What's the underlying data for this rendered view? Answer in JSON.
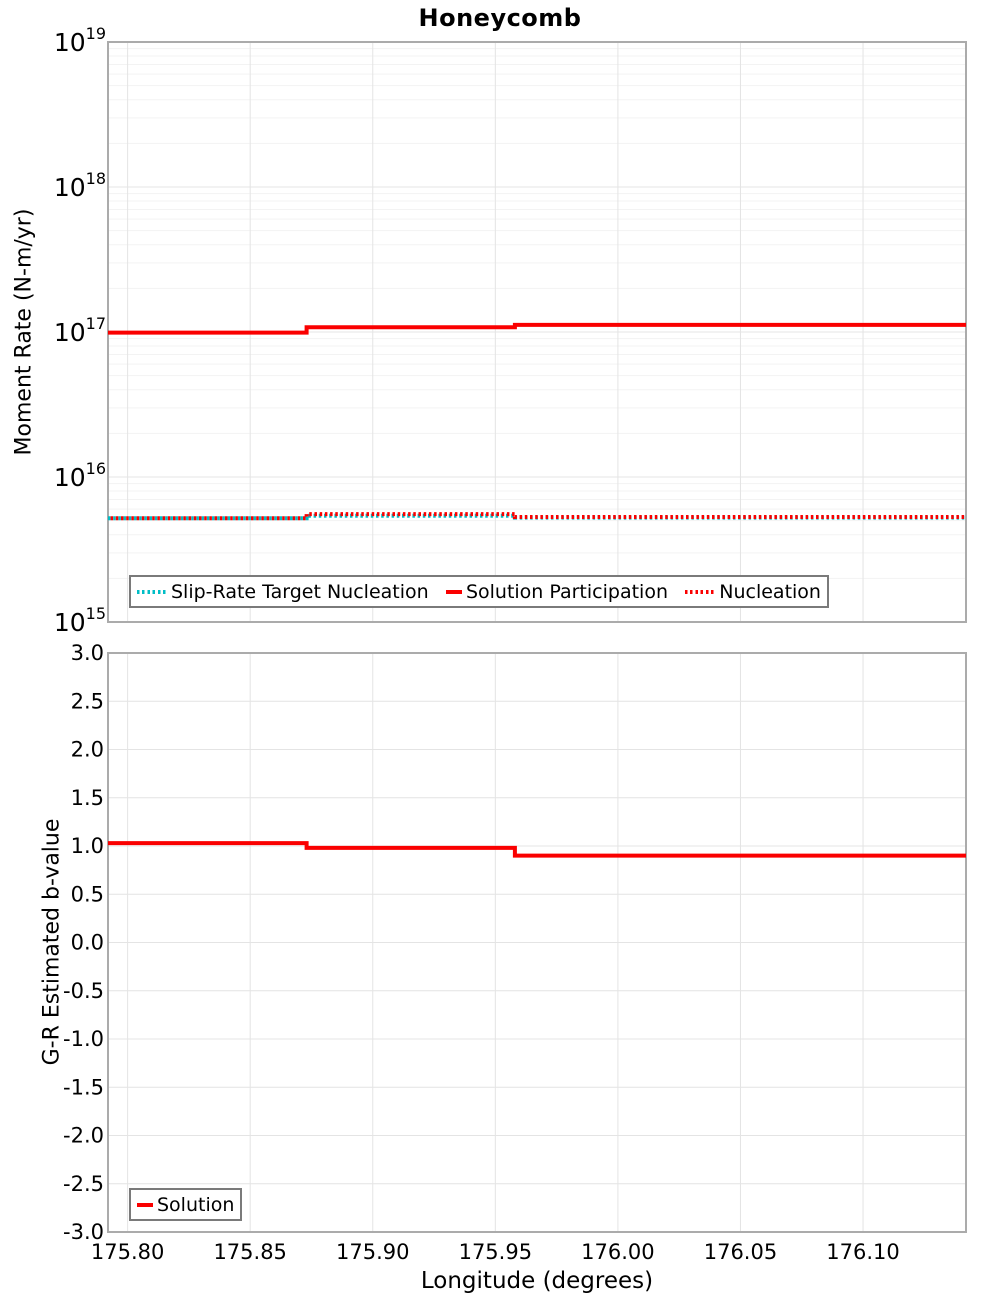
{
  "title": "Honeycomb",
  "colors": {
    "red": "#fa0000",
    "teal": "#00bdc6",
    "grid_major": "#e4e4e4",
    "grid_minor": "#f3f3f3",
    "border": "#ababab",
    "legend_border": "#7a7a7a",
    "text": "#000000"
  },
  "top_axis": {
    "ylabel": "Moment Rate (N-m/yr)"
  },
  "bottom_axis": {
    "ylabel": "G-R Estimated b-value",
    "xlabel": "Longitude (degrees)"
  },
  "chart_data": [
    {
      "type": "line",
      "title": "Honeycomb",
      "ylabel": "Moment Rate (N-m/yr)",
      "yscale": "log",
      "ylim_exp": [
        15,
        19
      ],
      "y_tick_labels": [
        "10^19",
        "10^18",
        "10^17",
        "10^16",
        "10^15"
      ],
      "xlim": [
        175.792,
        176.142
      ],
      "x_tick_values": [
        175.8,
        175.85,
        175.9,
        175.95,
        176.0,
        176.05,
        176.1
      ],
      "x_step_edges": [
        175.792,
        175.873,
        175.958,
        176.142
      ],
      "grid": "log-minor+major",
      "legend_position": "bottom-left",
      "series": [
        {
          "name": "Slip-Rate Target Nucleation",
          "line_style": "dotted",
          "color_key": "teal",
          "values": [
            5200000000000000.0,
            5400000000000000.0,
            5250000000000000.0
          ]
        },
        {
          "name": "Solution Participation",
          "line_style": "solid",
          "color_key": "red",
          "values": [
            9.9e+16,
            1.08e+17,
            1.12e+17
          ]
        },
        {
          "name": "Nucleation",
          "line_style": "dotted",
          "color_key": "red",
          "values": [
            5200000000000000.0,
            5550000000000000.0,
            5300000000000000.0
          ]
        }
      ]
    },
    {
      "type": "line",
      "ylabel": "G-R Estimated b-value",
      "xlabel": "Longitude (degrees)",
      "yscale": "linear",
      "ylim": [
        -3.0,
        3.0
      ],
      "y_tick_step": 0.5,
      "y_tick_labels": [
        "3.0",
        "2.5",
        "2.0",
        "1.5",
        "1.0",
        "0.5",
        "0.0",
        "-0.5",
        "-1.0",
        "-1.5",
        "-2.0",
        "-2.5",
        "-3.0"
      ],
      "xlim": [
        175.792,
        176.142
      ],
      "x_tick_values": [
        175.8,
        175.85,
        175.9,
        175.95,
        176.0,
        176.05,
        176.1
      ],
      "x_tick_labels": [
        "175.80",
        "175.85",
        "175.90",
        "175.95",
        "176.00",
        "176.05",
        "176.10"
      ],
      "x_step_edges": [
        175.792,
        175.873,
        175.958,
        176.142
      ],
      "grid": "major",
      "legend_position": "bottom-left",
      "series": [
        {
          "name": "Solution",
          "line_style": "solid",
          "color_key": "red",
          "values": [
            1.03,
            0.98,
            0.9
          ]
        }
      ]
    }
  ]
}
